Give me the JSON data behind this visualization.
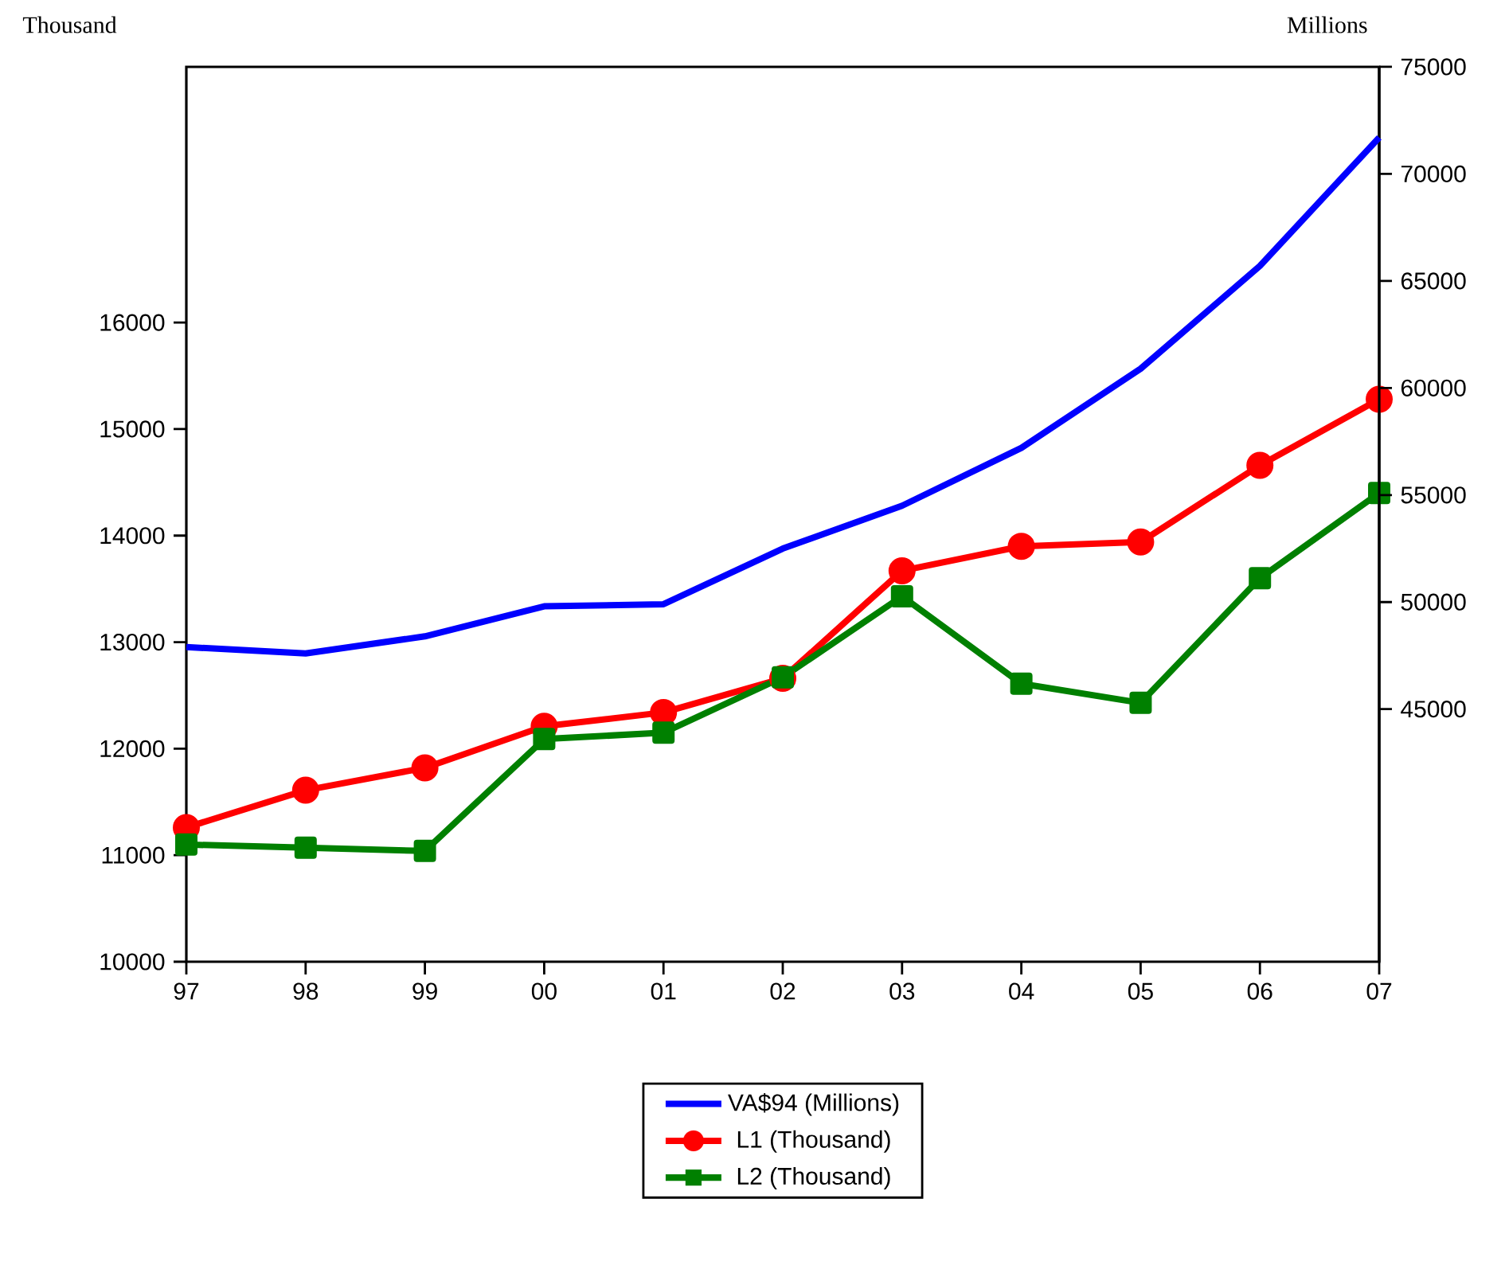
{
  "chart_data": {
    "type": "line",
    "ylabel": "Thousand",
    "y2label": "Millions",
    "categories": [
      "97",
      "98",
      "99",
      "00",
      "01",
      "02",
      "03",
      "04",
      "05",
      "06",
      "07"
    ],
    "series": [
      {
        "name": "VA$94 (Millions)",
        "color": "#0000ff",
        "axis": "y2",
        "marker": "none",
        "values": [
          47900,
          47600,
          48400,
          49800,
          49900,
          52500,
          54500,
          57200,
          60900,
          65700,
          71700
        ]
      },
      {
        "name": "L1 (Thousand)",
        "color": "#ff0000",
        "marker": "circle",
        "values": [
          11260,
          11610,
          11820,
          12210,
          12340,
          12660,
          13670,
          13900,
          13940,
          14660,
          15280
        ]
      },
      {
        "name": "L2 (Thousand)",
        "color": "#008000",
        "marker": "square",
        "values": [
          11100,
          11070,
          11040,
          12090,
          12150,
          12670,
          13430,
          12610,
          12430,
          13600,
          14400
        ]
      }
    ],
    "ylim": [
      10000,
      18400
    ],
    "yticks": [
      10000,
      11000,
      12000,
      13000,
      14000,
      15000,
      16000
    ],
    "y2lim": [
      33200,
      75000
    ],
    "y2ticks": [
      45000,
      50000,
      55000,
      60000,
      65000,
      70000,
      75000
    ],
    "grid": false,
    "legend": "bottom",
    "line_style": "solid"
  }
}
